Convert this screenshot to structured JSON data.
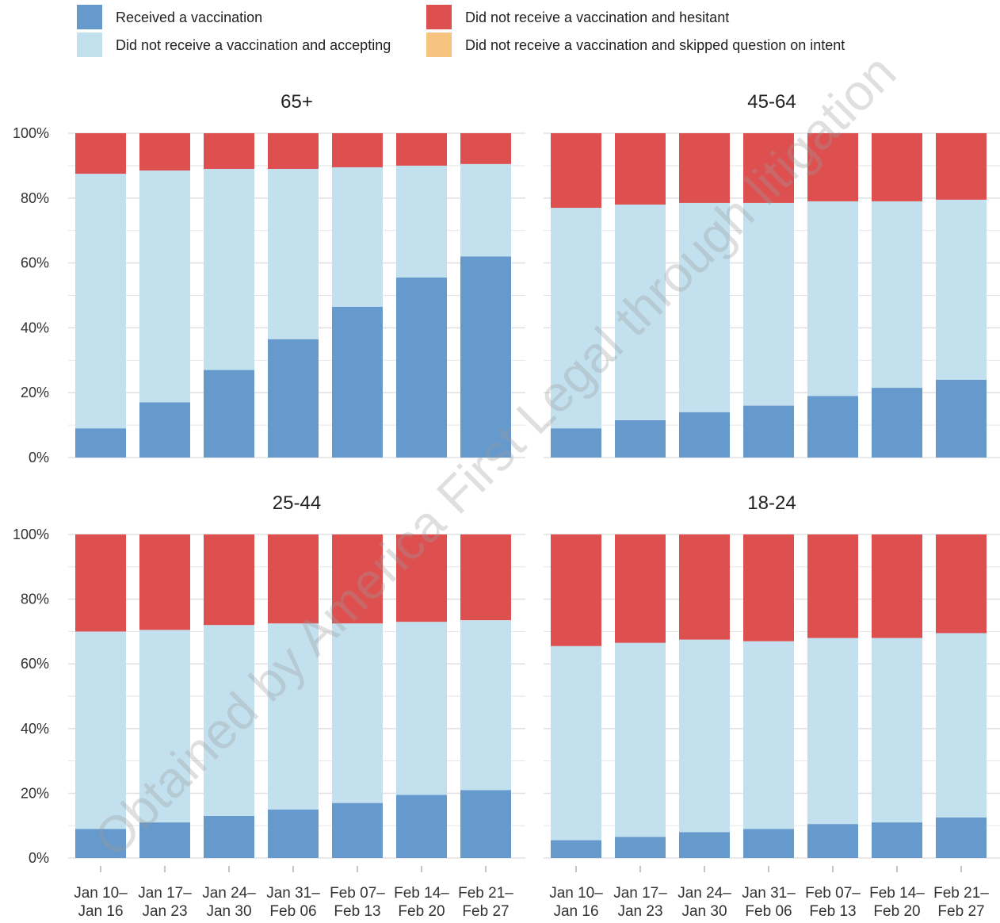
{
  "colors": {
    "received": "#6699cc",
    "accepting": "#c3e0ef",
    "hesitant": "#de5050",
    "skipped": "#f7c47f",
    "grid": "#e2e2e2"
  },
  "legend": [
    {
      "key": "received",
      "label": "Received a vaccination"
    },
    {
      "key": "accepting",
      "label": "Did not receive a vaccination and accepting"
    },
    {
      "key": "hesitant",
      "label": "Did not receive a vaccination and hesitant"
    },
    {
      "key": "skipped",
      "label": "Did not receive a vaccination and skipped question on intent"
    }
  ],
  "watermark": "Obtained by America First Legal through litigation",
  "chart_data": {
    "type": "bar",
    "stacked": true,
    "y_tick_labels": [
      "0%",
      "20%",
      "40%",
      "60%",
      "80%",
      "100%"
    ],
    "ylim": [
      0,
      100
    ],
    "grid": true,
    "legend_position": "top",
    "categories": [
      [
        "Jan 10–",
        "Jan 16"
      ],
      [
        "Jan 17–",
        "Jan 23"
      ],
      [
        "Jan 24–",
        "Jan 30"
      ],
      [
        "Jan 31–",
        "Feb 06"
      ],
      [
        "Feb 07–",
        "Feb 13"
      ],
      [
        "Feb 14–",
        "Feb 20"
      ],
      [
        "Feb 21–",
        "Feb 27"
      ]
    ],
    "panels": [
      {
        "title": "65+",
        "series": [
          {
            "key": "received",
            "values": [
              9,
              17,
              27,
              36.5,
              46.5,
              55.5,
              62
            ]
          },
          {
            "key": "accepting",
            "values": [
              78.5,
              71.5,
              62,
              52.5,
              43,
              34.5,
              28.5
            ]
          },
          {
            "key": "hesitant",
            "values": [
              12.5,
              11.5,
              11,
              11,
              10.5,
              10,
              9.5
            ]
          }
        ]
      },
      {
        "title": "45-64",
        "series": [
          {
            "key": "received",
            "values": [
              9,
              11.5,
              14,
              16,
              19,
              21.5,
              24
            ]
          },
          {
            "key": "accepting",
            "values": [
              68,
              66.5,
              64.5,
              62.5,
              60,
              57.5,
              55.5
            ]
          },
          {
            "key": "hesitant",
            "values": [
              23,
              22,
              21.5,
              21.5,
              21,
              21,
              20.5
            ]
          }
        ]
      },
      {
        "title": "25-44",
        "series": [
          {
            "key": "received",
            "values": [
              9,
              11,
              13,
              15,
              17,
              19.5,
              21
            ]
          },
          {
            "key": "accepting",
            "values": [
              61,
              59.5,
              59,
              57.5,
              55.5,
              53.5,
              52.5
            ]
          },
          {
            "key": "hesitant",
            "values": [
              30,
              29.5,
              28,
              27.5,
              27.5,
              27,
              26.5
            ]
          }
        ]
      },
      {
        "title": "18-24",
        "series": [
          {
            "key": "received",
            "values": [
              5.5,
              6.5,
              8,
              9,
              10.5,
              11,
              12.5
            ]
          },
          {
            "key": "accepting",
            "values": [
              60,
              60,
              59.5,
              58,
              57.5,
              57,
              57
            ]
          },
          {
            "key": "hesitant",
            "values": [
              34.5,
              33.5,
              32.5,
              33,
              32,
              32,
              30.5
            ]
          }
        ]
      }
    ]
  }
}
